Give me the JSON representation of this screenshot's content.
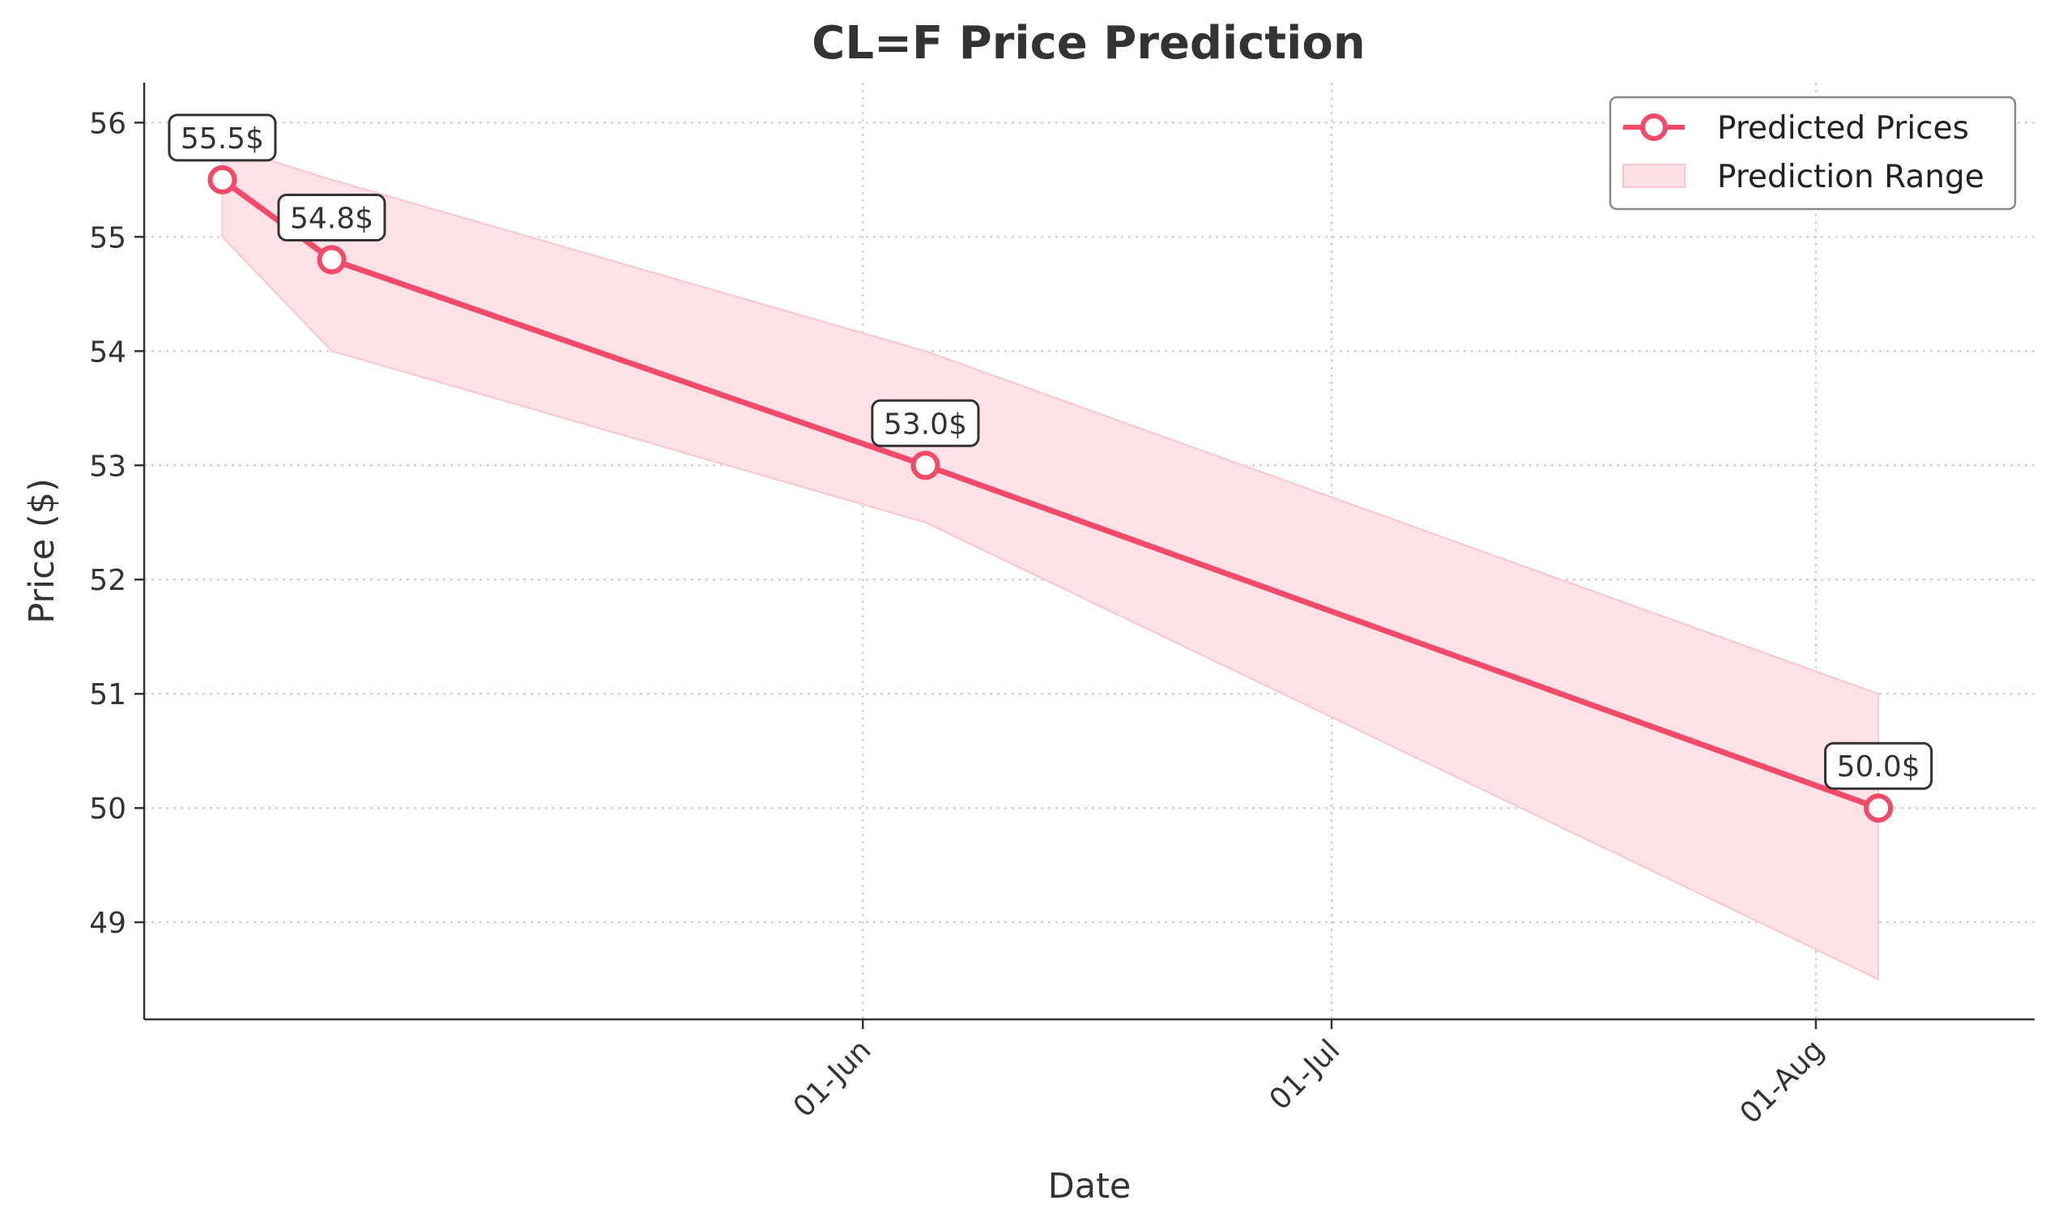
{
  "chart_data": {
    "type": "line",
    "title": "CL=F Price Prediction",
    "xlabel": "Date",
    "ylabel": "Price ($)",
    "x_axis_type": "date",
    "xlim": [
      "2025-04-16",
      "2025-08-15"
    ],
    "ylim": [
      48.15,
      56.35
    ],
    "x_ticks": [
      {
        "date": "2025-06-01",
        "label": "01-Jun"
      },
      {
        "date": "2025-07-01",
        "label": "01-Jul"
      },
      {
        "date": "2025-08-01",
        "label": "01-Aug"
      }
    ],
    "y_ticks": [
      49,
      50,
      51,
      52,
      53,
      54,
      55,
      56
    ],
    "grid": true,
    "legend_position": "top-right",
    "series": [
      {
        "name": "Predicted Prices",
        "color": "#f24a68",
        "points": [
          {
            "date": "2025-04-21",
            "value": 55.5,
            "label": "55.5$"
          },
          {
            "date": "2025-04-28",
            "value": 54.8,
            "label": "54.8$"
          },
          {
            "date": "2025-06-05",
            "value": 53.0,
            "label": "53.0$"
          },
          {
            "date": "2025-08-05",
            "value": 50.0,
            "label": "50.0$"
          }
        ]
      }
    ],
    "range": {
      "name": "Prediction Range",
      "color": "#ffe0e6",
      "edge_color": "#f9c7d1",
      "points": [
        {
          "date": "2025-04-21",
          "low": 55.0,
          "high": 55.8
        },
        {
          "date": "2025-04-28",
          "low": 54.0,
          "high": 55.5
        },
        {
          "date": "2025-06-05",
          "low": 52.5,
          "high": 54.0
        },
        {
          "date": "2025-08-05",
          "low": 48.5,
          "high": 51.0
        }
      ]
    }
  }
}
